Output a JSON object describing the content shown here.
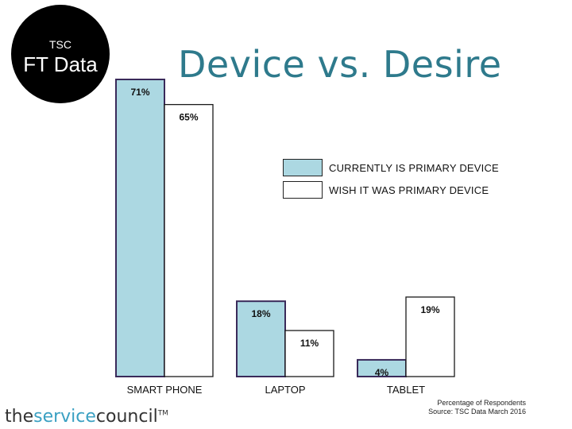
{
  "badge": {
    "small": "TSC",
    "big": "FT Data"
  },
  "title": "Device vs. Desire",
  "legend": [
    {
      "label": "CURRENTLY IS PRIMARY DEVICE",
      "color": "#acd8e2"
    },
    {
      "label": "WISH IT WAS PRIMARY DEVICE",
      "color": "#ffffff"
    }
  ],
  "chart_data": {
    "type": "bar",
    "title": "Device vs. Desire",
    "categories": [
      "SMART PHONE",
      "LAPTOP",
      "TABLET"
    ],
    "series": [
      {
        "name": "CURRENTLY IS PRIMARY DEVICE",
        "values": [
          71,
          18,
          4
        ],
        "labels": [
          "71%",
          "18%",
          "4%"
        ],
        "color": "#acd8e2",
        "stroke": "#3a2a5a"
      },
      {
        "name": "WISH IT WAS PRIMARY DEVICE",
        "values": [
          65,
          11,
          19
        ],
        "labels": [
          "65%",
          "11%",
          "19%"
        ],
        "color": "#ffffff",
        "stroke": "#1a1a1a"
      }
    ],
    "xlabel": "",
    "ylabel": "",
    "ylim": [
      0,
      71
    ],
    "grid": false,
    "legend_position": "right"
  },
  "footer": {
    "brand_part1": "the",
    "brand_part2": "service",
    "brand_part3": "council",
    "trademark": "TM",
    "source_line1": "Percentage of Respondents",
    "source_line2": "Source: TSC Data March 2016"
  }
}
